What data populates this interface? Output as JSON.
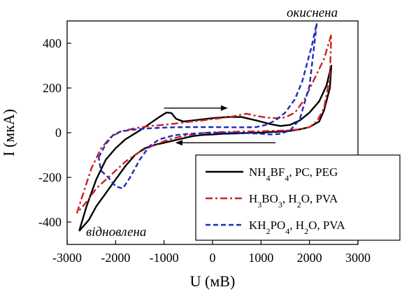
{
  "chart_data": {
    "type": "line",
    "xlabel": "U (мВ)",
    "ylabel": "I (мкА)",
    "xlim": [
      -3000,
      3000
    ],
    "ylim": [
      -500,
      500
    ],
    "x_ticks": [
      -3000,
      -2000,
      -1000,
      0,
      1000,
      2000,
      3000
    ],
    "y_ticks": [
      -400,
      -200,
      0,
      200,
      400
    ],
    "grid": false,
    "legend_position": "bottom-right",
    "annotations": [
      {
        "name": "oxidized-label",
        "text": "окиснена",
        "x": 1600,
        "y": 520
      },
      {
        "name": "reduced-label",
        "text": "відновлена",
        "x": -2600,
        "y": -420
      }
    ],
    "arrows": [
      {
        "name": "forward-scan-arrow",
        "from": [
          -1000,
          110
        ],
        "to": [
          300,
          110
        ]
      },
      {
        "name": "reverse-scan-arrow",
        "from": [
          1300,
          -45
        ],
        "to": [
          -750,
          -45
        ]
      }
    ],
    "legend": [
      {
        "parts": [
          [
            "NH",
            ""
          ],
          [
            "4",
            "sub"
          ],
          [
            "BF",
            ""
          ],
          [
            "4",
            "sub"
          ],
          [
            ", PC, PEG",
            ""
          ]
        ]
      },
      {
        "parts": [
          [
            "H",
            ""
          ],
          [
            "3",
            "sub"
          ],
          [
            "BO",
            ""
          ],
          [
            "3",
            "sub"
          ],
          [
            ", H",
            ""
          ],
          [
            "2",
            "sub"
          ],
          [
            "O, PVA",
            ""
          ]
        ]
      },
      {
        "parts": [
          [
            "KH",
            ""
          ],
          [
            "2",
            "sub"
          ],
          [
            "PO",
            ""
          ],
          [
            "4",
            "sub"
          ],
          [
            ", H",
            ""
          ],
          [
            "2",
            "sub"
          ],
          [
            "O, PVA",
            ""
          ]
        ]
      }
    ],
    "series": [
      {
        "color": "#000000",
        "dash": "solid",
        "points": [
          [
            -2750,
            -440
          ],
          [
            -2600,
            -330
          ],
          [
            -2400,
            -210
          ],
          [
            -2200,
            -120
          ],
          [
            -2000,
            -70
          ],
          [
            -1800,
            -30
          ],
          [
            -1500,
            10
          ],
          [
            -1300,
            40
          ],
          [
            -1100,
            70
          ],
          [
            -950,
            90
          ],
          [
            -850,
            88
          ],
          [
            -750,
            62
          ],
          [
            -600,
            50
          ],
          [
            -400,
            55
          ],
          [
            -200,
            60
          ],
          [
            0,
            65
          ],
          [
            300,
            70
          ],
          [
            600,
            70
          ],
          [
            900,
            55
          ],
          [
            1200,
            38
          ],
          [
            1400,
            30
          ],
          [
            1600,
            35
          ],
          [
            1800,
            55
          ],
          [
            2000,
            90
          ],
          [
            2200,
            140
          ],
          [
            2350,
            210
          ],
          [
            2450,
            300
          ],
          [
            2420,
            200
          ],
          [
            2300,
            100
          ],
          [
            2200,
            50
          ],
          [
            2000,
            25
          ],
          [
            1800,
            15
          ],
          [
            1600,
            8
          ],
          [
            1400,
            5
          ],
          [
            1200,
            3
          ],
          [
            1000,
            0
          ],
          [
            800,
            0
          ],
          [
            500,
            -3
          ],
          [
            200,
            -5
          ],
          [
            0,
            -8
          ],
          [
            -200,
            -10
          ],
          [
            -400,
            -15
          ],
          [
            -600,
            -25
          ],
          [
            -800,
            -35
          ],
          [
            -1000,
            -45
          ],
          [
            -1200,
            -55
          ],
          [
            -1400,
            -70
          ],
          [
            -1600,
            -100
          ],
          [
            -1800,
            -150
          ],
          [
            -2000,
            -210
          ],
          [
            -2200,
            -270
          ],
          [
            -2400,
            -330
          ],
          [
            -2550,
            -390
          ],
          [
            -2750,
            -440
          ]
        ]
      },
      {
        "color": "#cc2222",
        "dash": "dashdot",
        "points": [
          [
            -2800,
            -360
          ],
          [
            -2650,
            -260
          ],
          [
            -2500,
            -160
          ],
          [
            -2300,
            -70
          ],
          [
            -2100,
            -20
          ],
          [
            -1900,
            5
          ],
          [
            -1600,
            20
          ],
          [
            -1300,
            30
          ],
          [
            -1000,
            35
          ],
          [
            -800,
            40
          ],
          [
            -500,
            48
          ],
          [
            -200,
            55
          ],
          [
            100,
            63
          ],
          [
            400,
            72
          ],
          [
            700,
            85
          ],
          [
            900,
            75
          ],
          [
            1100,
            68
          ],
          [
            1300,
            65
          ],
          [
            1500,
            68
          ],
          [
            1700,
            90
          ],
          [
            1900,
            150
          ],
          [
            2100,
            240
          ],
          [
            2300,
            330
          ],
          [
            2450,
            440
          ],
          [
            2420,
            250
          ],
          [
            2300,
            110
          ],
          [
            2150,
            50
          ],
          [
            2000,
            25
          ],
          [
            1800,
            15
          ],
          [
            1500,
            10
          ],
          [
            1200,
            8
          ],
          [
            900,
            6
          ],
          [
            600,
            5
          ],
          [
            300,
            3
          ],
          [
            0,
            2
          ],
          [
            -300,
            -3
          ],
          [
            -600,
            -15
          ],
          [
            -900,
            -30
          ],
          [
            -1200,
            -55
          ],
          [
            -1500,
            -85
          ],
          [
            -1800,
            -130
          ],
          [
            -2100,
            -190
          ],
          [
            -2400,
            -250
          ],
          [
            -2600,
            -310
          ],
          [
            -2800,
            -360
          ]
        ]
      },
      {
        "color": "#1c2bb8",
        "dash": "dashed",
        "points": [
          [
            -2350,
            -110
          ],
          [
            -2200,
            -50
          ],
          [
            -2050,
            -10
          ],
          [
            -1900,
            5
          ],
          [
            -1700,
            12
          ],
          [
            -1400,
            18
          ],
          [
            -1100,
            22
          ],
          [
            -800,
            24
          ],
          [
            -500,
            25
          ],
          [
            -200,
            25
          ],
          [
            100,
            25
          ],
          [
            400,
            24
          ],
          [
            700,
            24
          ],
          [
            900,
            25
          ],
          [
            1100,
            35
          ],
          [
            1300,
            55
          ],
          [
            1500,
            90
          ],
          [
            1700,
            150
          ],
          [
            1850,
            230
          ],
          [
            1950,
            310
          ],
          [
            2050,
            390
          ],
          [
            2150,
            490
          ],
          [
            2000,
            210
          ],
          [
            1800,
            60
          ],
          [
            1600,
            10
          ],
          [
            1400,
            -5
          ],
          [
            1200,
            -8
          ],
          [
            1000,
            -5
          ],
          [
            700,
            -2
          ],
          [
            400,
            0
          ],
          [
            100,
            0
          ],
          [
            -200,
            -2
          ],
          [
            -500,
            -5
          ],
          [
            -800,
            -12
          ],
          [
            -1100,
            -30
          ],
          [
            -1300,
            -60
          ],
          [
            -1500,
            -120
          ],
          [
            -1700,
            -200
          ],
          [
            -1850,
            -250
          ],
          [
            -2000,
            -240
          ],
          [
            -2150,
            -200
          ],
          [
            -2300,
            -170
          ],
          [
            -2350,
            -110
          ]
        ]
      }
    ]
  }
}
